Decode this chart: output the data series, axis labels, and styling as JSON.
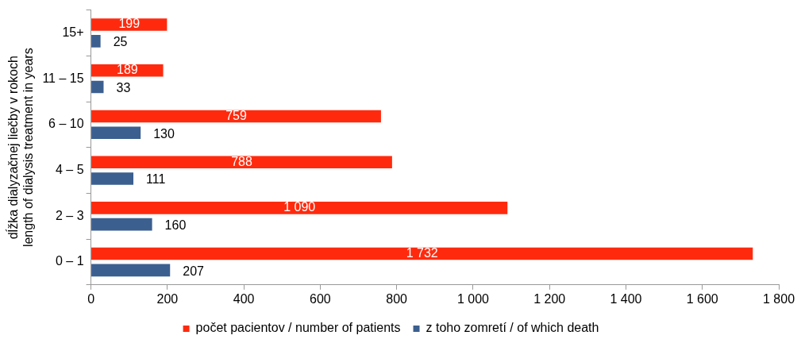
{
  "chart_data": {
    "type": "bar",
    "orientation": "horizontal",
    "ylabel": [
      "dĺžka dialyzačnej liečby v rokoch",
      "length of dialysis treatment in years"
    ],
    "categories": [
      "15+",
      "11 – 15",
      "6 – 10",
      "4 – 5",
      "2 – 3",
      "0 – 1"
    ],
    "series": [
      {
        "name": "počet pacientov / number of patients",
        "color": "#ff2a0e",
        "values": [
          199,
          189,
          759,
          788,
          1090,
          1732
        ],
        "value_labels": [
          "199",
          "189",
          "759",
          "788",
          "1 090",
          "1 732"
        ]
      },
      {
        "name": "z toho zomretí / of which death",
        "color": "#3b5f8f",
        "values": [
          25,
          33,
          130,
          111,
          160,
          207
        ],
        "value_labels": [
          "25",
          "33",
          "130",
          "111",
          "160",
          "207"
        ]
      }
    ],
    "xlim": [
      0,
      1800
    ],
    "xticks": [
      0,
      200,
      400,
      600,
      800,
      {
        "value": 1000,
        "label": "1 000"
      },
      {
        "value": 1200,
        "label": "1 200"
      },
      {
        "value": 1400,
        "label": "1 400"
      },
      {
        "value": 1600,
        "label": "1 600"
      },
      {
        "value": 1800,
        "label": "1 800"
      }
    ],
    "grid": false,
    "legend": "bottom"
  }
}
